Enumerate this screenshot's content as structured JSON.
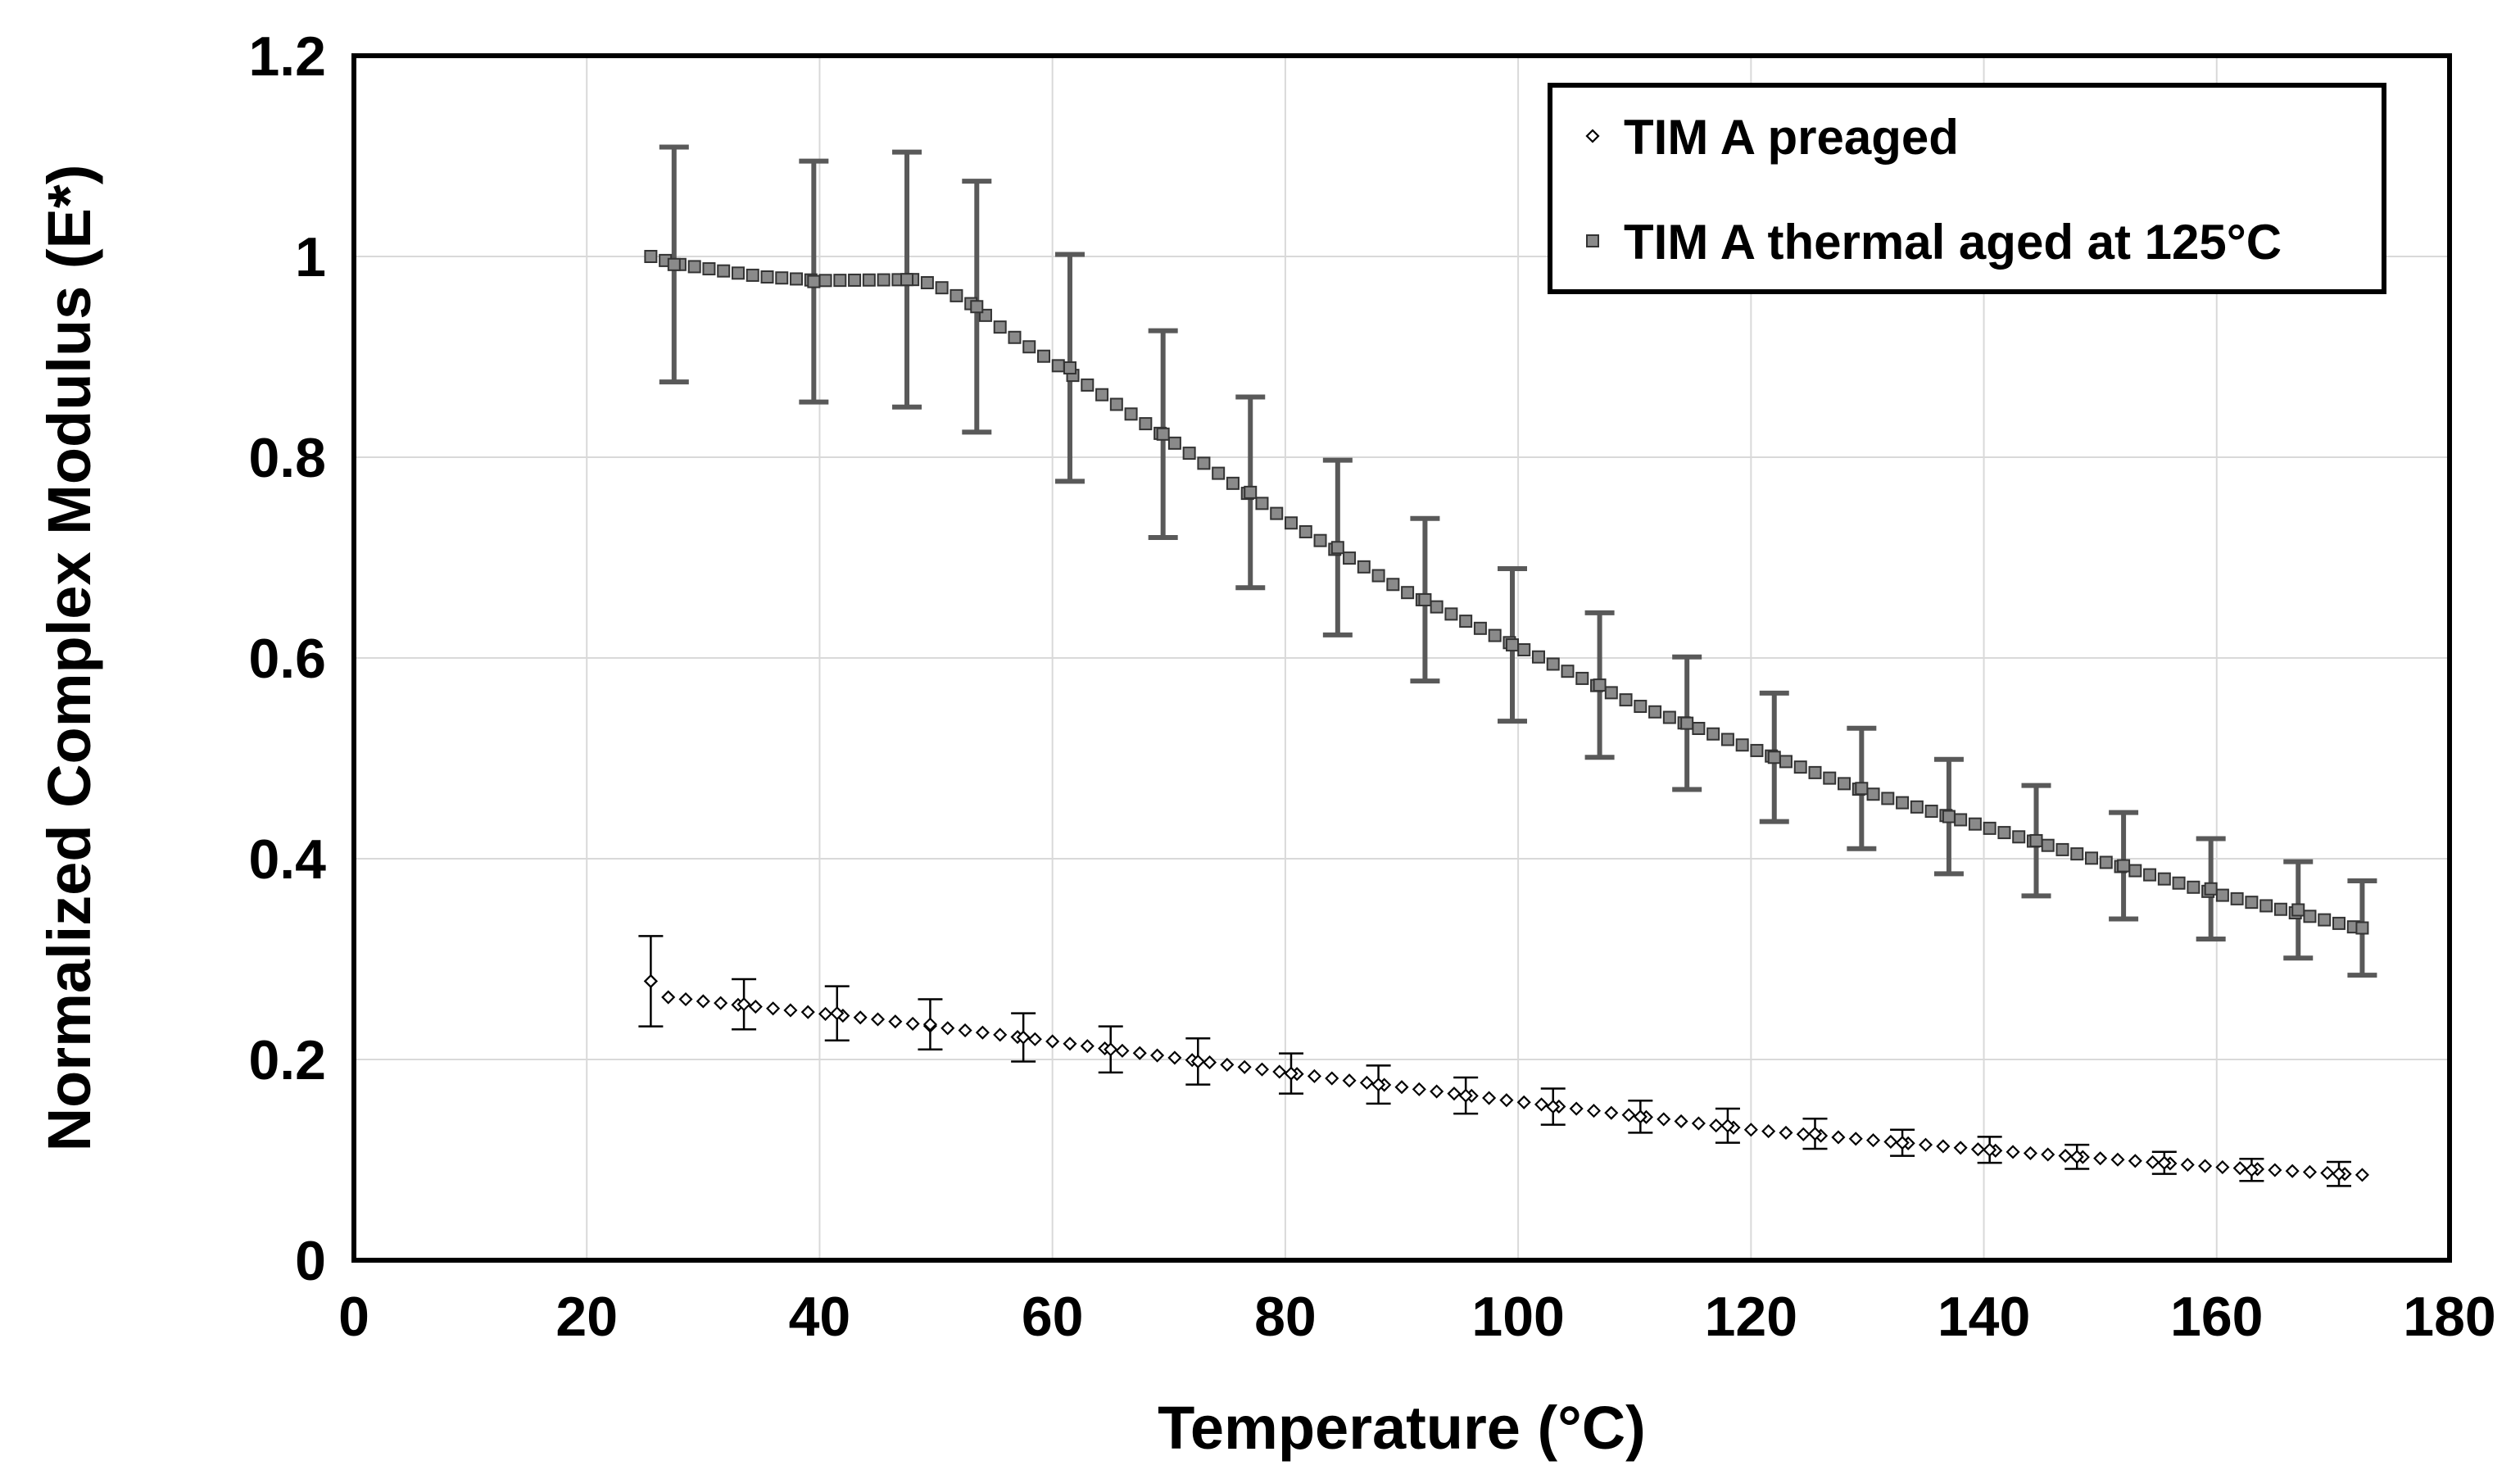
{
  "chart_data": {
    "type": "scatter",
    "title": "",
    "xlabel": "Temperature (°C)",
    "ylabel": "Normalized Complex Modulus (E*)",
    "xlim": [
      0,
      180
    ],
    "ylim": [
      0,
      1.2
    ],
    "x_ticks": [
      0,
      20,
      40,
      60,
      80,
      100,
      120,
      140,
      160,
      180
    ],
    "y_ticks": [
      0,
      0.2,
      0.4,
      0.6,
      0.8,
      1,
      1.2
    ],
    "x_tick_labels": [
      "0",
      "20",
      "40",
      "60",
      "80",
      "100",
      "120",
      "140",
      "160",
      "180"
    ],
    "y_tick_labels": [
      "0",
      "0.2",
      "0.4",
      "0.6",
      "0.8",
      "1",
      "1.2"
    ],
    "grid": true,
    "legend_position": "top-right",
    "series": [
      {
        "name": "TIM A preaged",
        "marker": "diamond-open",
        "color": "#000000",
        "x_start": 25.5,
        "x_end": 172.5,
        "x_step": 1.5,
        "y_anchors": [
          [
            25.5,
            0.278
          ],
          [
            27,
            0.262
          ],
          [
            30,
            0.258
          ],
          [
            45,
            0.24
          ],
          [
            60,
            0.218
          ],
          [
            80,
            0.187
          ],
          [
            100,
            0.158
          ],
          [
            120,
            0.13
          ],
          [
            140,
            0.11
          ],
          [
            160,
            0.093
          ],
          [
            172.5,
            0.085
          ]
        ],
        "errorbars": [
          {
            "x": 25.5,
            "y": 0.278,
            "err": 0.045
          },
          {
            "x": 33.5,
            "y": 0.255,
            "err": 0.025
          },
          {
            "x": 41.5,
            "y": 0.246,
            "err": 0.027
          },
          {
            "x": 49.5,
            "y": 0.235,
            "err": 0.025
          },
          {
            "x": 57.5,
            "y": 0.222,
            "err": 0.024
          },
          {
            "x": 65.0,
            "y": 0.21,
            "err": 0.023
          },
          {
            "x": 72.5,
            "y": 0.198,
            "err": 0.023
          },
          {
            "x": 80.5,
            "y": 0.186,
            "err": 0.02
          },
          {
            "x": 88.0,
            "y": 0.175,
            "err": 0.019
          },
          {
            "x": 95.5,
            "y": 0.164,
            "err": 0.018
          },
          {
            "x": 103.0,
            "y": 0.153,
            "err": 0.018
          },
          {
            "x": 110.5,
            "y": 0.143,
            "err": 0.016
          },
          {
            "x": 118.0,
            "y": 0.134,
            "err": 0.017
          },
          {
            "x": 125.5,
            "y": 0.126,
            "err": 0.015
          },
          {
            "x": 133.0,
            "y": 0.117,
            "err": 0.013
          },
          {
            "x": 140.5,
            "y": 0.11,
            "err": 0.013
          },
          {
            "x": 148.0,
            "y": 0.103,
            "err": 0.012
          },
          {
            "x": 155.5,
            "y": 0.097,
            "err": 0.011
          },
          {
            "x": 163.0,
            "y": 0.09,
            "err": 0.011
          },
          {
            "x": 170.5,
            "y": 0.086,
            "err": 0.012
          }
        ]
      },
      {
        "name": "TIM A thermal aged at 125°C",
        "marker": "square-filled",
        "color": "#808080",
        "x_start": 25.5,
        "x_end": 172.5,
        "x_step": 1.25,
        "y_anchors": [
          [
            25.5,
            1.0
          ],
          [
            28,
            0.992
          ],
          [
            35,
            0.98
          ],
          [
            40,
            0.976
          ],
          [
            48,
            0.977
          ],
          [
            50,
            0.972
          ],
          [
            53,
            0.953
          ],
          [
            56,
            0.925
          ],
          [
            60,
            0.895
          ],
          [
            70,
            0.818
          ],
          [
            80,
            0.738
          ],
          [
            90,
            0.668
          ],
          [
            100,
            0.611
          ],
          [
            110,
            0.554
          ],
          [
            120,
            0.51
          ],
          [
            130,
            0.466
          ],
          [
            140,
            0.432
          ],
          [
            150,
            0.398
          ],
          [
            160,
            0.365
          ],
          [
            172.5,
            0.33
          ]
        ],
        "errorbars": [
          {
            "x": 27.5,
            "y": 0.992,
            "err": 0.117
          },
          {
            "x": 39.5,
            "y": 0.975,
            "err": 0.12
          },
          {
            "x": 47.5,
            "y": 0.977,
            "err": 0.127
          },
          {
            "x": 53.5,
            "y": 0.95,
            "err": 0.125
          },
          {
            "x": 61.5,
            "y": 0.889,
            "err": 0.113
          },
          {
            "x": 69.5,
            "y": 0.823,
            "err": 0.103
          },
          {
            "x": 77.0,
            "y": 0.765,
            "err": 0.095
          },
          {
            "x": 84.5,
            "y": 0.71,
            "err": 0.087
          },
          {
            "x": 92.0,
            "y": 0.658,
            "err": 0.081
          },
          {
            "x": 99.5,
            "y": 0.613,
            "err": 0.076
          },
          {
            "x": 107.0,
            "y": 0.573,
            "err": 0.072
          },
          {
            "x": 114.5,
            "y": 0.535,
            "err": 0.066
          },
          {
            "x": 122.0,
            "y": 0.501,
            "err": 0.064
          },
          {
            "x": 129.5,
            "y": 0.47,
            "err": 0.06
          },
          {
            "x": 137.0,
            "y": 0.442,
            "err": 0.057
          },
          {
            "x": 144.5,
            "y": 0.418,
            "err": 0.055
          },
          {
            "x": 152.0,
            "y": 0.393,
            "err": 0.053
          },
          {
            "x": 159.5,
            "y": 0.37,
            "err": 0.05
          },
          {
            "x": 167.0,
            "y": 0.349,
            "err": 0.048
          },
          {
            "x": 172.5,
            "y": 0.331,
            "err": 0.047
          }
        ]
      }
    ]
  }
}
